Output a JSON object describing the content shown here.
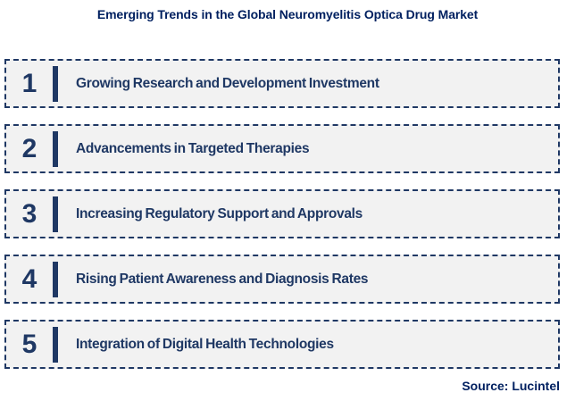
{
  "page": {
    "title": "Emerging Trends in the Global Neuromyelitis Optica Drug Market",
    "source": "Source: Lucintel"
  },
  "colors": {
    "navy_text": "#1F3864",
    "title_navy": "#002060",
    "box_background": "#F2F2F2",
    "page_background": "#FFFFFF"
  },
  "trends": {
    "items": [
      {
        "number": "1",
        "label": "Growing Research and Development Investment"
      },
      {
        "number": "2",
        "label": "Advancements in Targeted Therapies"
      },
      {
        "number": "3",
        "label": "Increasing Regulatory Support and Approvals"
      },
      {
        "number": "4",
        "label": "Rising Patient Awareness and Diagnosis Rates"
      },
      {
        "number": "5",
        "label": "Integration of Digital Health Technologies"
      }
    ]
  }
}
